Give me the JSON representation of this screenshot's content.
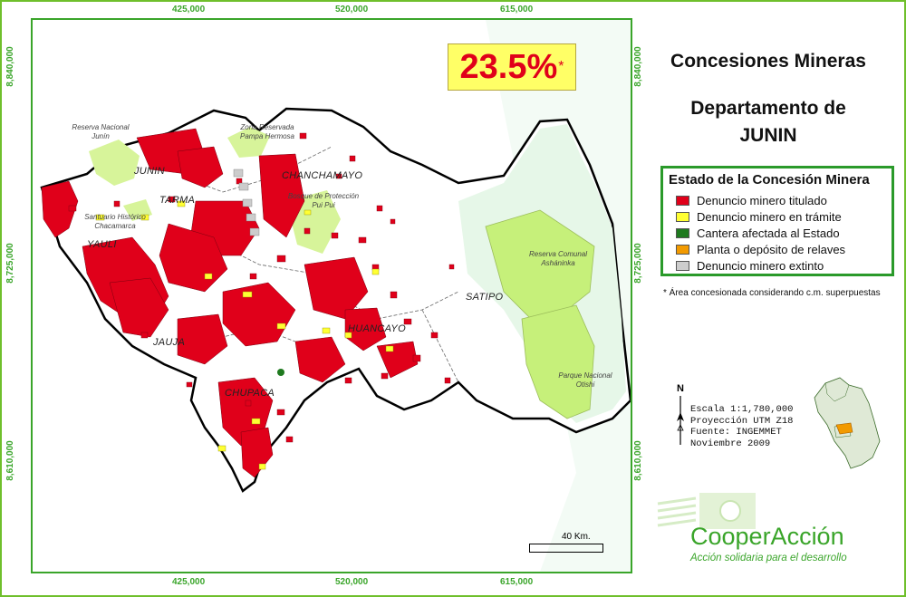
{
  "map": {
    "percentage": "23.5%",
    "percentage_mark": "*",
    "title_line1": "Concesiones Mineras",
    "title_line2": "Departamento de",
    "title_line3": "JUNIN",
    "coords_top": [
      "425,000",
      "520,000",
      "615,000"
    ],
    "coords_bottom": [
      "425,000",
      "520,000",
      "615,000"
    ],
    "coords_left": [
      "8,840,000",
      "8,725,000",
      "8,610,000"
    ],
    "coords_right": [
      "8,840,000",
      "8,725,000",
      "8,610,000"
    ],
    "provinces": [
      "JUNIN",
      "TARMA",
      "CHANCHAMAYO",
      "YAULI",
      "JAUJA",
      "CHUPACA",
      "HUANCAYO",
      "SATIPO"
    ],
    "reserves": {
      "junin": "Reserva Nacional\nJunín",
      "pampa": "Zona Reservada\nPampa Hermosa",
      "puipui": "Bosque de Protección\nPui Pui",
      "chacamarca": "Santuario Histórico\nChacamarca",
      "ashaninka": "Reserva Comunal\nAsháninka",
      "otishi": "Parque Nacional\nOtishi"
    }
  },
  "legend": {
    "title": "Estado de la Concesión Minera",
    "items": [
      {
        "label": "Denuncio minero titulado",
        "color": "#e0001a"
      },
      {
        "label": "Denuncio minero en trámite",
        "color": "#ffff33"
      },
      {
        "label": "Cantera afectada al Estado",
        "color": "#1f7a1f"
      },
      {
        "label": "Planta o depósito de relaves",
        "color": "#f29a00"
      },
      {
        "label": "Denuncio minero extinto",
        "color": "#cccccc"
      }
    ]
  },
  "footnote": "* Área concesionada considerando c.m. superpuestas",
  "info": {
    "north": "N",
    "scale": "Escala 1:1,780,000",
    "projection": "Proyección UTM Z18",
    "source": "Fuente: INGEMMET",
    "date": "Noviembre 2009"
  },
  "scale_bar": "40 Km.",
  "logo": {
    "name": "CooperAcción",
    "tagline": "Acción solidaria para el desarrollo"
  },
  "colors": {
    "frame": "#3aa52a",
    "concession": "#e0001a",
    "reserve": "#c6f07a"
  }
}
